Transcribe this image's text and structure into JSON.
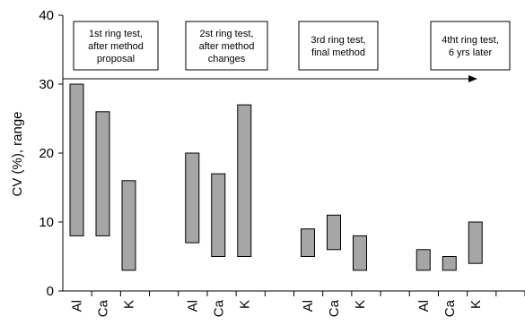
{
  "chart_data": {
    "type": "bar",
    "title": "",
    "xlabel": "",
    "ylabel": "CV (%), range",
    "ylim": [
      0,
      40
    ],
    "yticks": [
      0,
      10,
      20,
      30,
      40
    ],
    "grid": false,
    "bar_color": "#a6a6a6",
    "groups": [
      {
        "annotation": [
          "1st ring test,",
          "after method",
          "proposal"
        ],
        "bars": [
          {
            "label": "Al",
            "low": 8,
            "high": 30
          },
          {
            "label": "Ca",
            "low": 8,
            "high": 26
          },
          {
            "label": "K",
            "low": 3,
            "high": 16
          }
        ]
      },
      {
        "annotation": [
          "2st ring test,",
          "after method",
          "changes"
        ],
        "bars": [
          {
            "label": "Al",
            "low": 7,
            "high": 20
          },
          {
            "label": "Ca",
            "low": 5,
            "high": 17
          },
          {
            "label": "K",
            "low": 5,
            "high": 27
          }
        ]
      },
      {
        "annotation": [
          "3rd ring test,",
          "final method"
        ],
        "bars": [
          {
            "label": "Al",
            "low": 5,
            "high": 9
          },
          {
            "label": "Ca",
            "low": 6,
            "high": 11
          },
          {
            "label": "K",
            "low": 3,
            "high": 8
          }
        ]
      },
      {
        "annotation": [
          "4tht ring test,",
          "6 yrs later"
        ],
        "bars": [
          {
            "label": "Al",
            "low": 3,
            "high": 6
          },
          {
            "label": "Ca",
            "low": 3,
            "high": 5
          },
          {
            "label": "K",
            "low": 4,
            "high": 10
          }
        ]
      }
    ],
    "timeline_arrow": true
  }
}
